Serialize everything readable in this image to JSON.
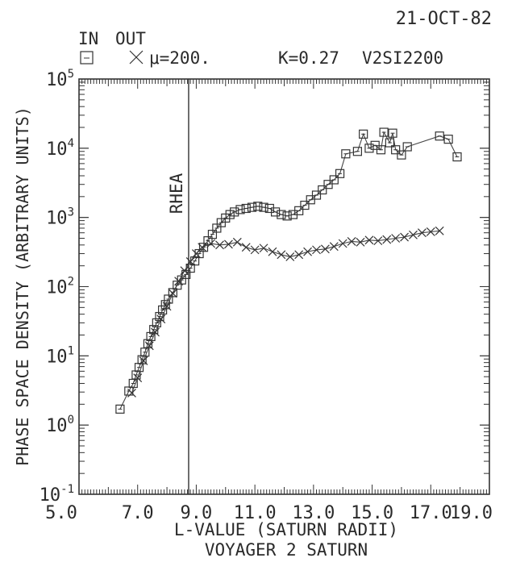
{
  "header": {
    "date": "21-OCT-82",
    "legend_in": "IN",
    "legend_out": "OUT",
    "mu": "μ=200.",
    "k_value": "K=0.27",
    "run_id": "V2SI2200"
  },
  "chart_data": {
    "type": "scatter",
    "title": "VOYAGER 2 SATURN",
    "xlabel": "L-VALUE (SATURN RADII)",
    "ylabel": "PHASE SPACE DENSITY (ARBITRARY UNITS)",
    "xlim": [
      5.0,
      19.0
    ],
    "ylim": [
      0.1,
      100000
    ],
    "y_scale": "log",
    "x_ticks": [
      "5.0",
      "7.0",
      "9.0",
      "11.0",
      "13.0",
      "15.0",
      "17.0",
      "19.0"
    ],
    "y_ticks": [
      {
        "base": "10",
        "exp": "5",
        "value": 100000
      },
      {
        "base": "10",
        "exp": "4",
        "value": 10000
      },
      {
        "base": "10",
        "exp": "3",
        "value": 1000
      },
      {
        "base": "10",
        "exp": "2",
        "value": 100
      },
      {
        "base": "10",
        "exp": "1",
        "value": 10
      },
      {
        "base": "10",
        "exp": "0",
        "value": 1
      },
      {
        "base": "10",
        "exp": "-1",
        "value": 0.1
      }
    ],
    "legend": "top-left",
    "annotations": [
      {
        "text": "RHEA",
        "x": 8.74
      }
    ],
    "series": [
      {
        "name": "IN",
        "marker": "square",
        "connected": true,
        "points": [
          [
            6.4,
            1.7
          ],
          [
            6.7,
            3.1
          ],
          [
            6.85,
            4.0
          ],
          [
            6.95,
            5.3
          ],
          [
            7.05,
            6.8
          ],
          [
            7.15,
            8.8
          ],
          [
            7.25,
            11.3
          ],
          [
            7.35,
            15
          ],
          [
            7.45,
            19
          ],
          [
            7.55,
            24
          ],
          [
            7.65,
            30
          ],
          [
            7.75,
            37
          ],
          [
            7.85,
            46
          ],
          [
            7.95,
            55
          ],
          [
            8.05,
            66
          ],
          [
            8.2,
            82
          ],
          [
            8.35,
            105
          ],
          [
            8.5,
            125
          ],
          [
            8.65,
            150
          ],
          [
            8.8,
            185
          ],
          [
            8.95,
            235
          ],
          [
            9.1,
            300
          ],
          [
            9.25,
            370
          ],
          [
            9.4,
            460
          ],
          [
            9.55,
            570
          ],
          [
            9.7,
            700
          ],
          [
            9.85,
            840
          ],
          [
            10.0,
            980
          ],
          [
            10.15,
            1100
          ],
          [
            10.3,
            1200
          ],
          [
            10.5,
            1300
          ],
          [
            10.7,
            1350
          ],
          [
            10.9,
            1400
          ],
          [
            11.1,
            1450
          ],
          [
            11.3,
            1400
          ],
          [
            11.5,
            1350
          ],
          [
            11.7,
            1200
          ],
          [
            11.9,
            1100
          ],
          [
            12.1,
            1050
          ],
          [
            12.3,
            1100
          ],
          [
            12.5,
            1250
          ],
          [
            12.7,
            1500
          ],
          [
            12.9,
            1800
          ],
          [
            13.1,
            2100
          ],
          [
            13.3,
            2500
          ],
          [
            13.5,
            3000
          ],
          [
            13.7,
            3500
          ],
          [
            13.9,
            4300
          ],
          [
            14.1,
            8300
          ],
          [
            14.5,
            9000
          ],
          [
            14.7,
            16000
          ],
          [
            14.9,
            10000
          ],
          [
            15.1,
            11000
          ],
          [
            15.3,
            9500
          ],
          [
            15.4,
            17000
          ],
          [
            15.6,
            12000
          ],
          [
            15.7,
            16500
          ],
          [
            15.8,
            9500
          ],
          [
            16.0,
            8000
          ],
          [
            16.2,
            10500
          ],
          [
            17.3,
            15000
          ],
          [
            17.6,
            13500
          ],
          [
            17.9,
            7500
          ]
        ]
      },
      {
        "name": "OUT",
        "marker": "x",
        "connected": true,
        "points": [
          [
            6.8,
            2.9
          ],
          [
            7.0,
            4.8
          ],
          [
            7.2,
            8.5
          ],
          [
            7.4,
            14
          ],
          [
            7.6,
            22
          ],
          [
            7.8,
            34
          ],
          [
            8.0,
            52
          ],
          [
            8.2,
            80
          ],
          [
            8.4,
            120
          ],
          [
            8.6,
            170
          ],
          [
            8.8,
            230
          ],
          [
            9.0,
            300
          ],
          [
            9.2,
            370
          ],
          [
            9.5,
            420
          ],
          [
            9.8,
            400
          ],
          [
            10.1,
            410
          ],
          [
            10.4,
            440
          ],
          [
            10.7,
            370
          ],
          [
            11.0,
            340
          ],
          [
            11.3,
            360
          ],
          [
            11.6,
            320
          ],
          [
            11.9,
            290
          ],
          [
            12.2,
            270
          ],
          [
            12.5,
            290
          ],
          [
            12.8,
            320
          ],
          [
            13.1,
            340
          ],
          [
            13.4,
            350
          ],
          [
            13.7,
            380
          ],
          [
            14.0,
            420
          ],
          [
            14.3,
            450
          ],
          [
            14.6,
            440
          ],
          [
            14.9,
            470
          ],
          [
            15.2,
            460
          ],
          [
            15.5,
            480
          ],
          [
            15.8,
            500
          ],
          [
            16.1,
            520
          ],
          [
            16.4,
            560
          ],
          [
            16.7,
            600
          ],
          [
            17.0,
            620
          ],
          [
            17.3,
            640
          ]
        ]
      }
    ]
  }
}
